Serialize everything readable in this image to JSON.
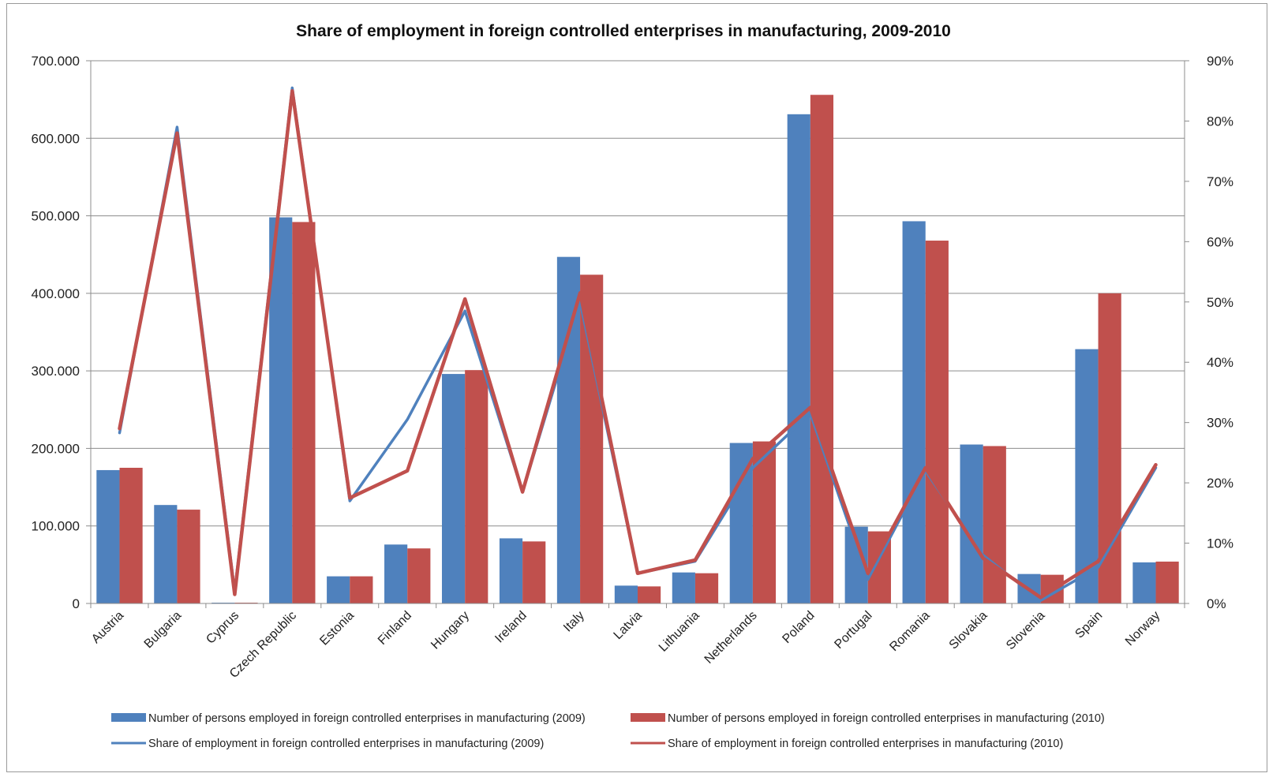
{
  "chart_data": {
    "type": "bar",
    "title": "Share of employment in foreign controlled enterprises in manufacturing,  2009-2010",
    "categories": [
      "Austria",
      "Bulgaria",
      "Cyprus",
      "Czech Republic",
      "Estonia",
      "Finland",
      "Hungary",
      "Ireland",
      "Italy",
      "Latvia",
      "Lithuania",
      "Netherlands",
      "Poland",
      "Portugal",
      "Romania",
      "Slovakia",
      "Slovenia",
      "Spain",
      "Norway"
    ],
    "left_axis": {
      "min": 0,
      "max": 700000,
      "ticks": [
        0,
        100000,
        200000,
        300000,
        400000,
        500000,
        600000,
        700000
      ],
      "tick_labels": [
        "0",
        "100.000",
        "200.000",
        "300.000",
        "400.000",
        "500.000",
        "600.000",
        "700.000"
      ]
    },
    "right_axis": {
      "min": 0,
      "max": 90,
      "ticks": [
        0,
        10,
        20,
        30,
        40,
        50,
        60,
        70,
        80,
        90
      ],
      "tick_labels": [
        "0%",
        "10%",
        "20%",
        "30%",
        "40%",
        "50%",
        "60%",
        "70%",
        "80%",
        "90%"
      ]
    },
    "grid": true,
    "legend_position": "bottom",
    "series": [
      {
        "name": "Number of persons employed in foreign controlled enterprises in manufacturing (2009)",
        "type": "bar",
        "axis": "left",
        "color": "#4f81bd",
        "values": [
          172000,
          127000,
          1000,
          498000,
          35000,
          76000,
          296000,
          84000,
          447000,
          23000,
          40000,
          207000,
          631000,
          99000,
          493000,
          205000,
          38000,
          328000,
          53000
        ]
      },
      {
        "name": "Number of persons employed in foreign controlled enterprises in manufacturing (2010)",
        "type": "bar",
        "axis": "left",
        "color": "#c0504d",
        "values": [
          175000,
          121000,
          1000,
          492000,
          35000,
          71000,
          301000,
          80000,
          424000,
          22000,
          39000,
          209000,
          656000,
          93000,
          468000,
          203000,
          37000,
          400000,
          54000
        ]
      },
      {
        "name": "Share of employment in foreign controlled enterprises in manufacturing (2009)",
        "type": "line",
        "axis": "right",
        "color": "#4f81bd",
        "values": [
          28.3,
          79.0,
          2.0,
          85.5,
          17.0,
          30.5,
          48.5,
          18.5,
          50.0,
          5.0,
          7.0,
          22.5,
          31.5,
          4.0,
          22.0,
          8.0,
          0.5,
          6.0,
          22.5
        ]
      },
      {
        "name": "Share of employment in foreign controlled enterprises in manufacturing (2010)",
        "type": "line",
        "axis": "right",
        "color": "#c0504d",
        "values": [
          29.0,
          78.0,
          1.5,
          85.0,
          17.5,
          22.0,
          50.5,
          18.5,
          51.5,
          5.0,
          7.2,
          24.0,
          32.5,
          5.0,
          22.5,
          7.5,
          1.0,
          7.0,
          23.0
        ]
      }
    ]
  }
}
